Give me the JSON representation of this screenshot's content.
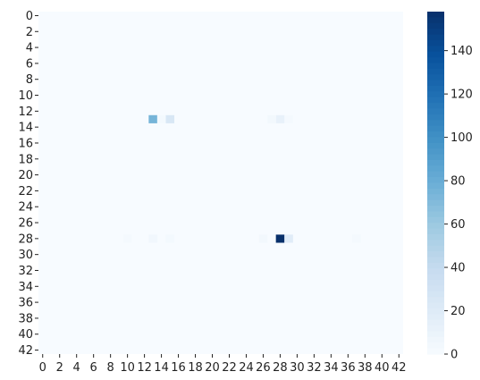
{
  "chart_data": {
    "type": "heatmap",
    "title": "",
    "xlabel": "",
    "ylabel": "",
    "rows": 43,
    "cols": 43,
    "x_ticks": [
      "0",
      "2",
      "4",
      "6",
      "8",
      "10",
      "12",
      "14",
      "16",
      "18",
      "20",
      "22",
      "24",
      "26",
      "28",
      "30",
      "32",
      "34",
      "36",
      "38",
      "40",
      "42"
    ],
    "y_ticks": [
      "0",
      "2",
      "4",
      "6",
      "8",
      "10",
      "12",
      "14",
      "16",
      "18",
      "20",
      "22",
      "24",
      "26",
      "28",
      "30",
      "32",
      "34",
      "36",
      "38",
      "40",
      "42"
    ],
    "value_range": [
      0,
      158
    ],
    "colormap": "Blues",
    "colorbar_ticks": [
      "0",
      "20",
      "40",
      "60",
      "80",
      "100",
      "120",
      "140"
    ],
    "default_value": 0,
    "cells": [
      {
        "row": 13,
        "col": 13,
        "value": 75
      },
      {
        "row": 13,
        "col": 15,
        "value": 25
      },
      {
        "row": 13,
        "col": 14,
        "value": 3
      },
      {
        "row": 13,
        "col": 28,
        "value": 12
      },
      {
        "row": 13,
        "col": 27,
        "value": 4
      },
      {
        "row": 13,
        "col": 29,
        "value": 2
      },
      {
        "row": 28,
        "col": 28,
        "value": 158
      },
      {
        "row": 28,
        "col": 29,
        "value": 18
      },
      {
        "row": 28,
        "col": 13,
        "value": 5
      },
      {
        "row": 28,
        "col": 15,
        "value": 3
      },
      {
        "row": 28,
        "col": 26,
        "value": 4
      },
      {
        "row": 28,
        "col": 10,
        "value": 2
      },
      {
        "row": 28,
        "col": 37,
        "value": 2
      }
    ]
  }
}
